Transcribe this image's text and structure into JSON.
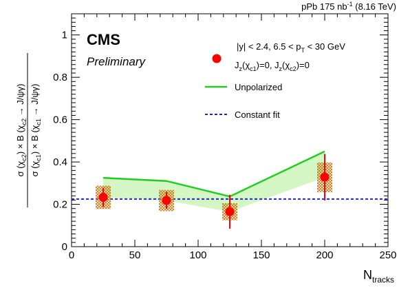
{
  "chart_data": {
    "type": "scatter",
    "header_right": "pPb 175 nb",
    "header_right_sup": "-1",
    "header_right_tail": " (8.16 TeV)",
    "experiment": "CMS",
    "status": "Preliminary",
    "selection_text": {
      "l1_a": "|y| < 2.4, 6.5 < p",
      "l1_sub": "T",
      "l1_b": " < 30 GeV",
      "l2_a": "J",
      "l2_sub1": "z",
      "l2_b": "(χ",
      "l2_sub2": "c1",
      "l2_c": ")=0, J",
      "l2_sub3": "z",
      "l2_d": "(χ",
      "l2_sub4": "c2",
      "l2_e": ")=0"
    },
    "xlabel": "N",
    "xlabel_sub": "tracks",
    "ylabel": {
      "num_a": "σ (χ",
      "num_sub": "c2",
      "num_b": ") × B (χ",
      "num_sub2": "c2",
      "num_c": " → J/ψγ)",
      "den_a": "σ (χ",
      "den_sub": "c1",
      "den_b": ") × B (χ",
      "den_sub2": "c1",
      "den_c": " → J/ψγ)"
    },
    "xlim": [
      0,
      250
    ],
    "ylim": [
      0,
      1.1
    ],
    "xticks": [
      0,
      50,
      100,
      150,
      200,
      250
    ],
    "yticks": [
      0,
      0.2,
      0.4,
      0.6,
      0.8,
      1
    ],
    "ytick_labels": [
      "0",
      "0.2",
      "0.4",
      "0.6",
      "0.8",
      "1"
    ],
    "series": [
      {
        "kind": "points",
        "x": [
          25,
          75,
          125,
          200
        ],
        "y": [
          0.233,
          0.218,
          0.165,
          0.328
        ],
        "stat_err": [
          0.045,
          0.04,
          0.08,
          0.11
        ],
        "syst_err": [
          0.055,
          0.05,
          0.04,
          0.07
        ],
        "color": "#ff0000",
        "syst_color": "#cc7a1a"
      },
      {
        "name": "Unpolarized",
        "kind": "band",
        "x": [
          25,
          75,
          125,
          200
        ],
        "upper": [
          0.325,
          0.31,
          0.237,
          0.45
        ],
        "lower": [
          0.233,
          0.218,
          0.165,
          0.328
        ],
        "color": "#22cc22",
        "fill": "#d4f5c4"
      },
      {
        "name": "Constant fit",
        "kind": "hline",
        "y": 0.225,
        "color": "#2222cc"
      }
    ]
  }
}
